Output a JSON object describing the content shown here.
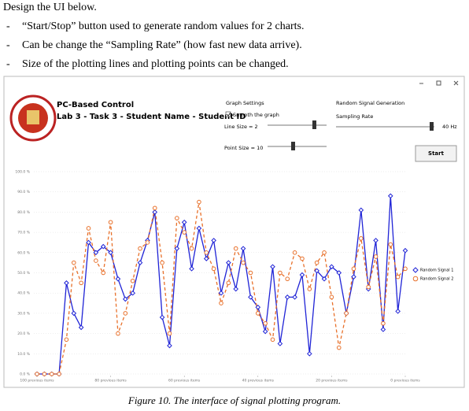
{
  "document": {
    "heading": "Design the UI below.",
    "bullets": [
      {
        "marker": "-",
        "text": "“Start/Stop” button used to generate random values for 2 charts."
      },
      {
        "marker": "-",
        "text": "Can be change the “Sampling Rate” (how fast new data arrive)."
      },
      {
        "marker": "-",
        "text": "Size of the plotting lines and plotting points can be changed."
      }
    ],
    "caption": "Figure 10.  The interface of signal plotting program."
  },
  "app": {
    "title": "PC-Based Control",
    "subtitle": "Lab 3 - Task 3 - Student Name - Student ID",
    "graph_settings": {
      "title": "Graph Settings",
      "smooth_label": "Smooth the graph",
      "line_size_label": "Line Size = 2",
      "point_size_label": "Point Size = 10"
    },
    "signal_generation": {
      "title": "Random Signal Generation",
      "sampling_rate_label": "Sampling Rate",
      "rate_value": "40 Hz",
      "start_button": "Start"
    }
  },
  "chart_data": {
    "type": "line",
    "x": [
      100,
      98,
      96,
      94,
      92,
      90,
      88,
      86,
      84,
      82,
      80,
      78,
      76,
      74,
      72,
      70,
      68,
      66,
      64,
      62,
      60,
      58,
      56,
      54,
      52,
      50,
      48,
      46,
      44,
      42,
      40,
      38,
      36,
      34,
      32,
      30,
      28,
      26,
      24,
      22,
      20,
      18,
      16,
      14,
      12,
      10,
      8,
      6,
      4,
      2,
      0
    ],
    "series": [
      {
        "name": "Random Signal 1",
        "color": "#1f23d6",
        "marker": "diamond",
        "line_style": "solid",
        "values": [
          0,
          0,
          0,
          0,
          45,
          30,
          23,
          65,
          60,
          63,
          60,
          47,
          37,
          40,
          55,
          66,
          80,
          28,
          14,
          62,
          75,
          52,
          72,
          57,
          66,
          40,
          55,
          42,
          62,
          38,
          33,
          21,
          53,
          15,
          38,
          38,
          49,
          10,
          51,
          47,
          53,
          50,
          30,
          48,
          81,
          42,
          66,
          22,
          88,
          31,
          61
        ]
      },
      {
        "name": "Random Signal 2",
        "color": "#e8702a",
        "marker": "circle",
        "line_style": "dashed",
        "values": [
          0,
          0,
          0,
          0,
          17,
          55,
          45,
          72,
          56,
          50,
          75,
          20,
          30,
          46,
          62,
          65,
          82,
          55,
          20,
          77,
          70,
          62,
          85,
          60,
          52,
          35,
          45,
          62,
          55,
          50,
          30,
          25,
          17,
          50,
          47,
          60,
          57,
          42,
          55,
          60,
          38,
          13,
          30,
          52,
          67,
          43,
          58,
          25,
          64,
          48,
          52
        ]
      }
    ],
    "xlim": [
      100,
      0
    ],
    "xticks": [
      {
        "value": 100,
        "label": "100 previous items"
      },
      {
        "value": 80,
        "label": "80 previous items"
      },
      {
        "value": 60,
        "label": "60 previous items"
      },
      {
        "value": 40,
        "label": "40 previous items"
      },
      {
        "value": 20,
        "label": "20 previous items"
      },
      {
        "value": 0,
        "label": "0 previous items"
      }
    ],
    "ylim": [
      0,
      100
    ],
    "yticks": [
      {
        "value": 0,
        "label": "0.0 %"
      },
      {
        "value": 10,
        "label": "10.0 %"
      },
      {
        "value": 20,
        "label": "20.0 %"
      },
      {
        "value": 30,
        "label": "30.0 %"
      },
      {
        "value": 40,
        "label": "40.0 %"
      },
      {
        "value": 50,
        "label": "50.0 %"
      },
      {
        "value": 60,
        "label": "60.0 %"
      },
      {
        "value": 70,
        "label": "70.0 %"
      },
      {
        "value": 80,
        "label": "80.0 %"
      },
      {
        "value": 90,
        "label": "90.0 %"
      },
      {
        "value": 100,
        "label": "100.0 %"
      }
    ],
    "grid": true,
    "legend": "right"
  }
}
